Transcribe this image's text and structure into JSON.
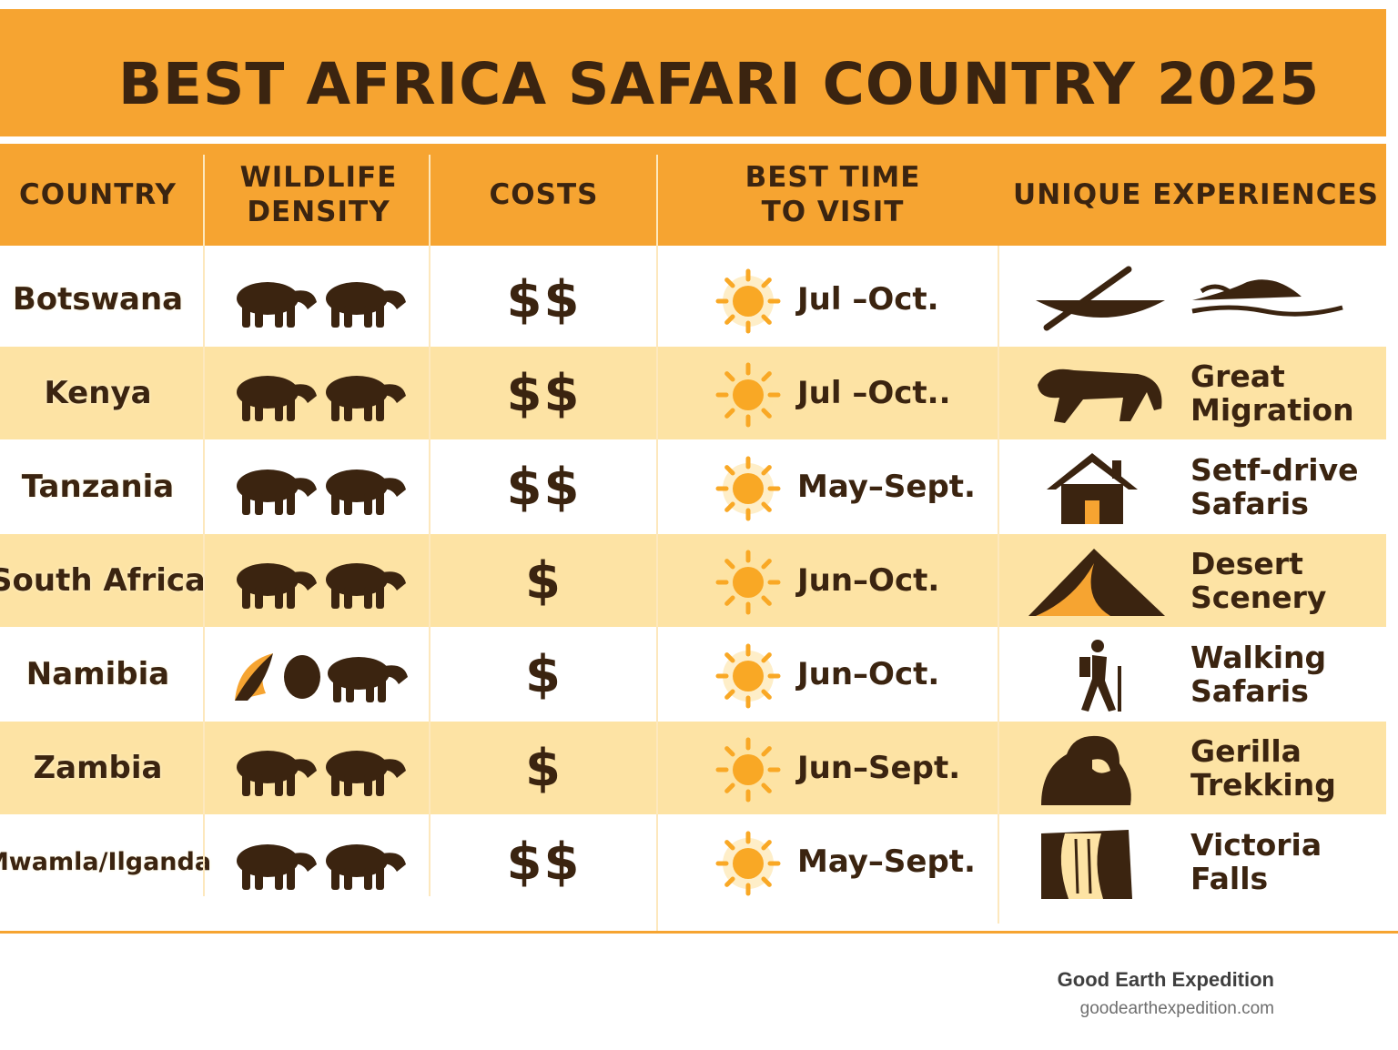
{
  "title": "BEST AFRICA SAFARI COUNTRY 2025",
  "colors": {
    "accent": "#f6a431",
    "alt_row": "#fde3a4",
    "text": "#3b2410",
    "sun": "#f9a825"
  },
  "headers": [
    "COUNTRY",
    "WILDLIFE\nDENSITY",
    "COSTS",
    "BEST TIME\nTO VISIT",
    "UNIQUE EXPERIENCES"
  ],
  "rows": [
    {
      "country": "Botswana",
      "wildlife_icon": "elephant-rhino-icon",
      "cost": "$$",
      "season": "Jul –Oct.",
      "experience": "",
      "experience_icon": "canoe-boat-icon"
    },
    {
      "country": "Kenya",
      "wildlife_icon": "antelope-herd-icon",
      "cost": "$$",
      "season": "Jul –Oct..",
      "experience": "Great\nMigration",
      "experience_icon": "lion-icon"
    },
    {
      "country": "Tanzania",
      "wildlife_icon": "elephant-herd-icon",
      "cost": "$$",
      "season": "May–Sept.",
      "experience": "Setf-drive\nSafaris",
      "experience_icon": "house-icon"
    },
    {
      "country": "South Africa",
      "wildlife_icon": "rhino-pair-icon",
      "cost": "$",
      "season": "Jun–Oct.",
      "experience": "Desert\nScenery",
      "experience_icon": "dune-icon"
    },
    {
      "country": "Namibia",
      "wildlife_icon": "bird-gorilla-icon",
      "cost": "$",
      "season": "Jun–Oct.",
      "experience": "Walking\nSafaris",
      "experience_icon": "hiker-icon"
    },
    {
      "country": "Zambia",
      "wildlife_icon": "gorilla-lion-icon",
      "cost": "$",
      "season": "Jun–Sept.",
      "experience": "Gerilla\nTrekking",
      "experience_icon": "gorilla-icon"
    },
    {
      "country": "Mwamla/Ilganda",
      "wildlife_icon": "buffalo-rhino-icon",
      "cost": "$$",
      "season": "May–Sept.",
      "experience": "Victoria\nFalls",
      "experience_icon": "waterfall-icon"
    }
  ],
  "footer": {
    "brand": "Good Earth Expedition",
    "url": "goodearthexpedition.com"
  }
}
